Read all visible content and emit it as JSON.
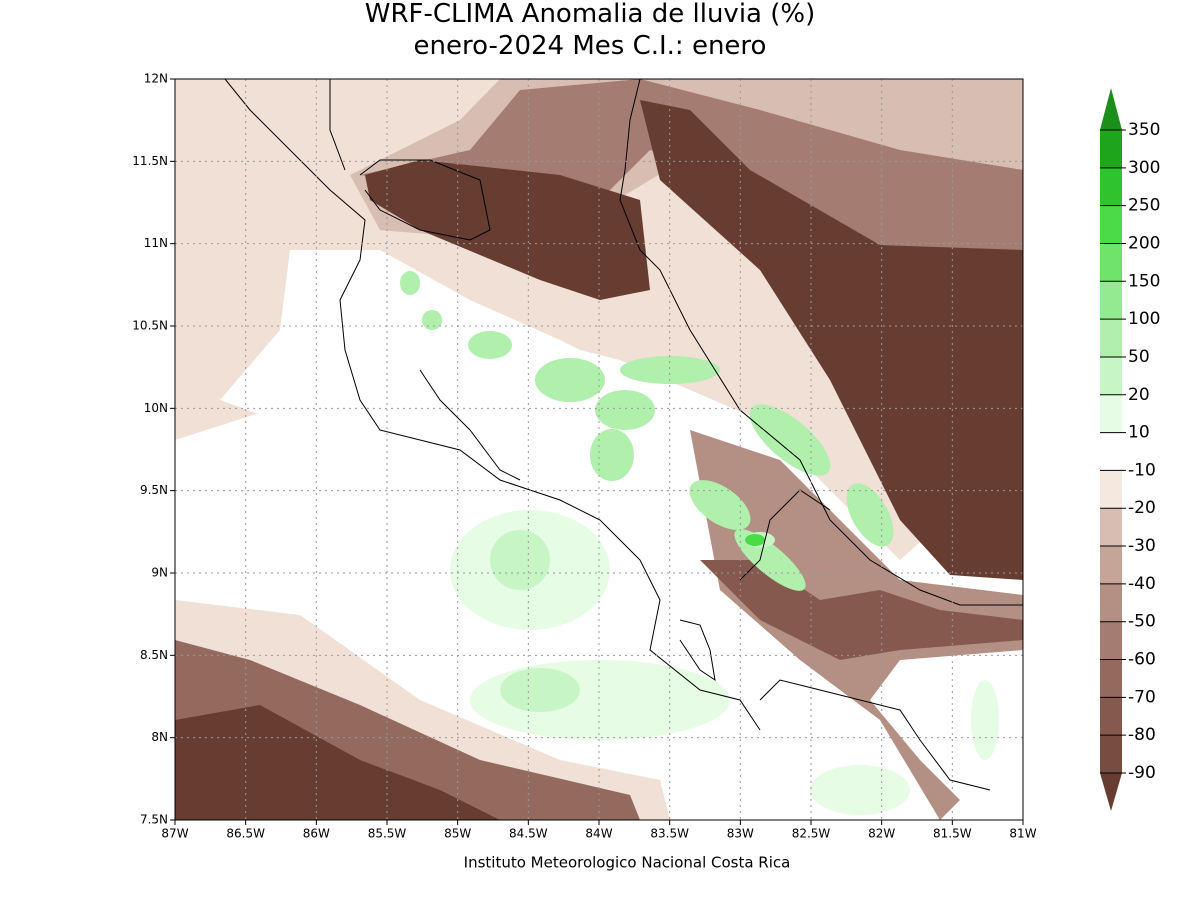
{
  "title": [
    "WRF-CLIMA Anomalia de lluvia (%)",
    "enero-2024 Mes C.I.: enero"
  ],
  "x_labels": [
    "87W",
    "86.5W",
    "86W",
    "85.5W",
    "85W",
    "84.5W",
    "84W",
    "83.5W",
    "83W",
    "82.5W",
    "82W",
    "81.5W",
    "81W"
  ],
  "y_labels": [
    "7.5N",
    "8N",
    "8.5N",
    "9N",
    "9.5N",
    "10N",
    "10.5N",
    "11N",
    "11.5N",
    "12N"
  ],
  "colorbar": {
    "levels": [
      -90,
      -80,
      -70,
      -60,
      -50,
      -40,
      -30,
      -20,
      -10,
      10,
      20,
      50,
      100,
      150,
      200,
      250,
      300,
      350
    ],
    "colors": [
      "#673d31",
      "#774c41",
      "#85594e",
      "#946a5f",
      "#a57c71",
      "#b48f84",
      "#c6a599",
      "#d8bdb2",
      "#f5e8de",
      "#ffffff",
      "#e6fce4",
      "#c8f5c6",
      "#b0efac",
      "#94ea90",
      "#70e36a",
      "#4bdb47",
      "#2fc42d",
      "#1ea51c",
      "#1a901a"
    ]
  },
  "footer": "Instituto Meteorologico Nacional Costa Rica"
}
